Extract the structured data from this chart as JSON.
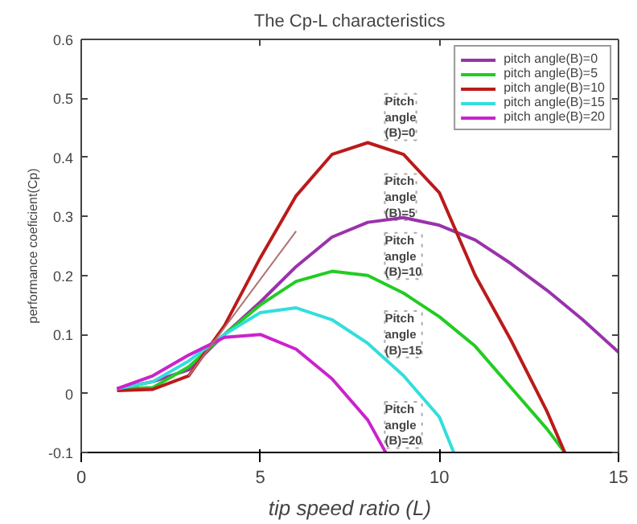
{
  "chart_data": {
    "type": "line",
    "title": "The Cp-L characteristics",
    "xlabel": "tip speed ratio (L)",
    "ylabel": "performance coeficient(Cp)",
    "xlim": [
      0,
      15
    ],
    "ylim": [
      -0.1,
      0.6
    ],
    "xticks": [
      0,
      5,
      10,
      15
    ],
    "yticks": [
      -0.1,
      0,
      0.1,
      0.2,
      0.3,
      0.4,
      0.5,
      0.6
    ],
    "grid": false,
    "legend": "top right",
    "marker": "none",
    "line_style": "solid",
    "series": [
      {
        "name": "pitch angle(B)=0",
        "color": "#9933aa",
        "x": [
          1,
          2,
          3,
          4,
          5,
          6,
          7,
          8,
          9,
          10,
          11,
          12,
          13,
          14,
          15
        ],
        "values": [
          0.008,
          0.02,
          0.04,
          0.1,
          0.155,
          0.215,
          0.265,
          0.29,
          0.298,
          0.285,
          0.26,
          0.22,
          0.175,
          0.125,
          0.07
        ]
      },
      {
        "name": "pitch angle(B)=5",
        "color": "#22cc22",
        "x": [
          1,
          2,
          3,
          4,
          5,
          6,
          7,
          8,
          9,
          10,
          11,
          12,
          13,
          13.5
        ],
        "values": [
          0.008,
          0.01,
          0.045,
          0.1,
          0.15,
          0.19,
          0.207,
          0.2,
          0.17,
          0.13,
          0.08,
          0.01,
          -0.06,
          -0.1
        ]
      },
      {
        "name": "pitch angle(B)=10",
        "color": "#bb1a1a",
        "x": [
          1,
          2,
          3,
          4,
          5,
          6,
          7,
          8,
          9,
          10,
          11,
          12,
          13,
          13.5
        ],
        "values": [
          0.005,
          0.007,
          0.03,
          0.115,
          0.23,
          0.335,
          0.405,
          0.425,
          0.405,
          0.34,
          0.2,
          0.09,
          -0.03,
          -0.1
        ]
      },
      {
        "name": "pitch angle(B)=15",
        "color": "#33dddd",
        "x": [
          1,
          2,
          3,
          4,
          5,
          6,
          7,
          8,
          9,
          10,
          10.4
        ],
        "values": [
          0.008,
          0.02,
          0.055,
          0.1,
          0.137,
          0.145,
          0.125,
          0.085,
          0.03,
          -0.04,
          -0.1
        ]
      },
      {
        "name": "pitch angle(B)=20",
        "color": "#cc22cc",
        "x": [
          1,
          2,
          3,
          4,
          5,
          6,
          7,
          8,
          8.5
        ],
        "values": [
          0.008,
          0.03,
          0.065,
          0.095,
          0.1,
          0.075,
          0.025,
          -0.045,
          -0.1
        ]
      },
      {
        "color": "#b07070",
        "x": [
          3,
          6
        ],
        "values": [
          0.03,
          0.275
        ]
      }
    ],
    "annotations": [
      "Pitch angle (B)=0",
      "Pitch angle (B)=5",
      "Pitch angle (B)=10",
      "Pitch angle (B)=15",
      "Pitch angle (B)=20"
    ]
  }
}
